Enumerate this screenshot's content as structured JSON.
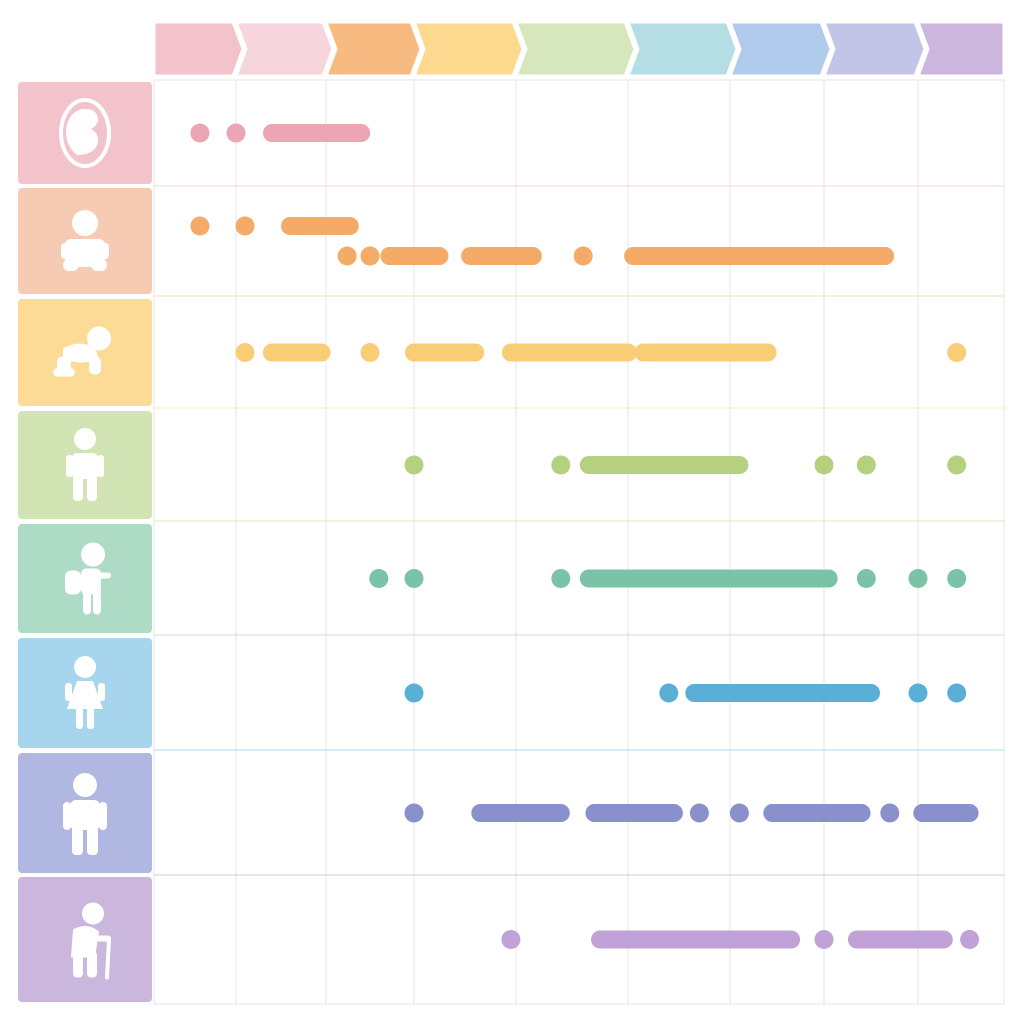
{
  "colors": {
    "header": [
      "#f2c3cb",
      "#f6d6dc",
      "#f7bb82",
      "#fbd98f",
      "#d6e6bd",
      "#b4dee3",
      "#b0cbeb",
      "#c2c4e8",
      "#cdb6de"
    ],
    "row_bg": [
      "#f2c3cb",
      "#f6cbb3",
      "#fbdb95",
      "#d3e4b4",
      "#aedbc5",
      "#a7d5ee",
      "#b0b7e0",
      "#cbb6de"
    ],
    "mark": [
      "#eca5b3",
      "#f3ab67",
      "#f9cd75",
      "#b5d17f",
      "#7ac3a7",
      "#5aafd6",
      "#8891cc",
      "#c0a2d7"
    ],
    "grid": "#e6e6ea"
  },
  "icons": [
    "embryo-icon",
    "infant-icon",
    "crawling-baby-icon",
    "child-icon",
    "schoolchild-backpack-icon",
    "girl-icon",
    "adult-icon",
    "elderly-with-cane-icon"
  ],
  "diagram_data": {
    "type": "timeline-matrix",
    "columns": 9,
    "rows": [
      {
        "stage": "prenatal",
        "marks": [
          {
            "type": "dot",
            "at": 0.56
          },
          {
            "type": "dot",
            "at": 1.0
          },
          {
            "type": "bar",
            "from": 1.4,
            "to": 2.4
          }
        ]
      },
      {
        "stage": "infant",
        "marks": [
          {
            "type": "dot",
            "at": 0.56,
            "lane": 0
          },
          {
            "type": "dot",
            "at": 1.1,
            "lane": 0
          },
          {
            "type": "bar",
            "from": 1.6,
            "to": 2.27,
            "lane": 0
          },
          {
            "type": "dot",
            "at": 2.24,
            "lane": 1
          },
          {
            "type": "dot",
            "at": 2.5,
            "lane": 1
          },
          {
            "type": "bar",
            "from": 2.72,
            "to": 3.25,
            "lane": 1
          },
          {
            "type": "bar",
            "from": 3.55,
            "to": 4.15,
            "lane": 1
          },
          {
            "type": "dot",
            "at": 4.6,
            "lane": 1
          },
          {
            "type": "bar",
            "from": 5.05,
            "to": 7.65,
            "lane": 1
          }
        ]
      },
      {
        "stage": "toddler",
        "marks": [
          {
            "type": "dot",
            "at": 1.1
          },
          {
            "type": "bar",
            "from": 1.4,
            "to": 1.95
          },
          {
            "type": "dot",
            "at": 2.5
          },
          {
            "type": "bar",
            "from": 3.0,
            "to": 3.6
          },
          {
            "type": "bar",
            "from": 3.95,
            "to": 5.0
          },
          {
            "type": "bar",
            "from": 5.15,
            "to": 6.4
          },
          {
            "type": "dot",
            "at": 8.45
          }
        ]
      },
      {
        "stage": "child",
        "marks": [
          {
            "type": "dot",
            "at": 3.0
          },
          {
            "type": "dot",
            "at": 4.4
          },
          {
            "type": "bar",
            "from": 4.65,
            "to": 6.1
          },
          {
            "type": "dot",
            "at": 7.0
          },
          {
            "type": "dot",
            "at": 7.45
          },
          {
            "type": "dot",
            "at": 8.45
          }
        ]
      },
      {
        "stage": "schoolchild",
        "marks": [
          {
            "type": "dot",
            "at": 2.6
          },
          {
            "type": "dot",
            "at": 3.0
          },
          {
            "type": "dot",
            "at": 4.4
          },
          {
            "type": "bar",
            "from": 4.65,
            "to": 7.05
          },
          {
            "type": "dot",
            "at": 7.45
          },
          {
            "type": "dot",
            "at": 8.0
          },
          {
            "type": "dot",
            "at": 8.45
          }
        ]
      },
      {
        "stage": "adolescent",
        "marks": [
          {
            "type": "dot",
            "at": 3.0
          },
          {
            "type": "dot",
            "at": 5.4
          },
          {
            "type": "bar",
            "from": 5.65,
            "to": 7.5
          },
          {
            "type": "dot",
            "at": 8.0
          },
          {
            "type": "dot",
            "at": 8.45
          }
        ]
      },
      {
        "stage": "adult",
        "marks": [
          {
            "type": "dot",
            "at": 3.0
          },
          {
            "type": "bar",
            "from": 3.65,
            "to": 4.4
          },
          {
            "type": "bar",
            "from": 4.7,
            "to": 5.45
          },
          {
            "type": "dot",
            "at": 5.7
          },
          {
            "type": "dot",
            "at": 6.1
          },
          {
            "type": "bar",
            "from": 6.45,
            "to": 7.4
          },
          {
            "type": "dot",
            "at": 7.7
          },
          {
            "type": "bar",
            "from": 8.05,
            "to": 8.6
          }
        ]
      },
      {
        "stage": "elderly",
        "marks": [
          {
            "type": "dot",
            "at": 3.95
          },
          {
            "type": "bar",
            "from": 4.75,
            "to": 6.65
          },
          {
            "type": "dot",
            "at": 7.0
          },
          {
            "type": "bar",
            "from": 7.35,
            "to": 8.3
          },
          {
            "type": "dot",
            "at": 8.6
          }
        ]
      }
    ]
  }
}
